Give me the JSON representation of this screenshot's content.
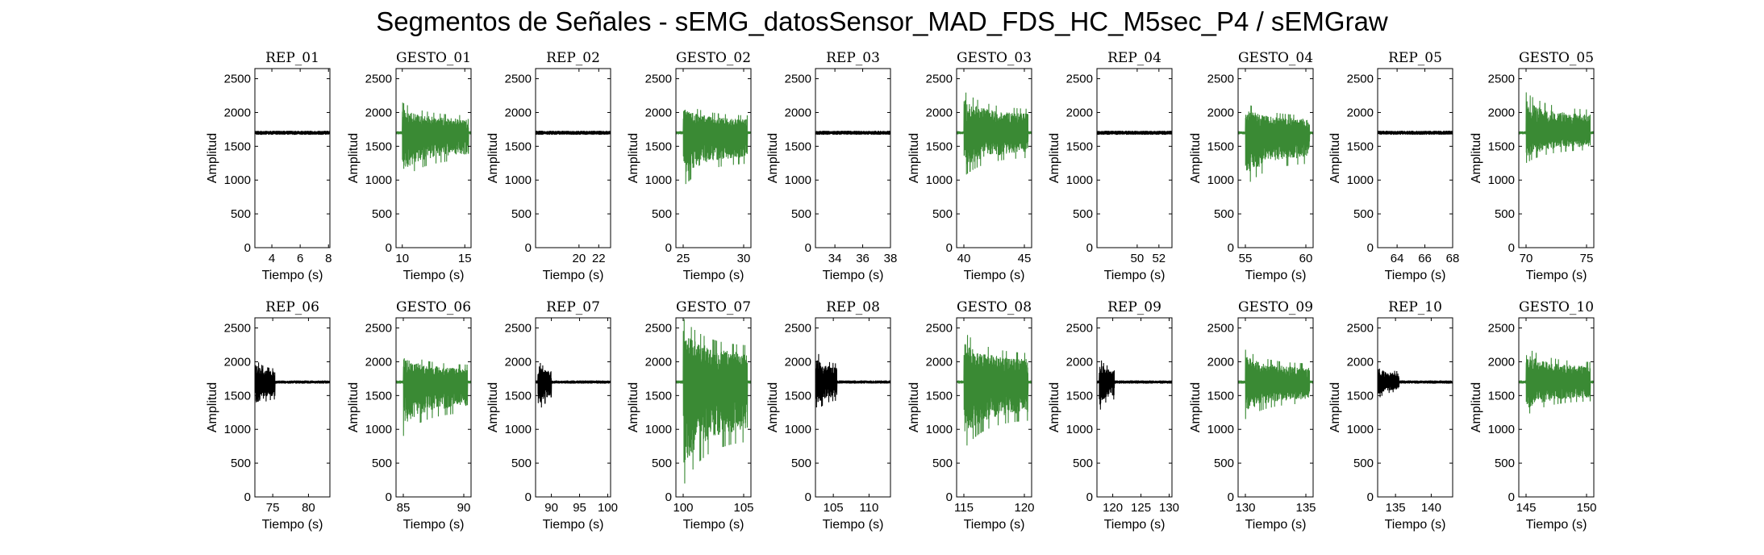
{
  "title": "Segmentos de Señales - sEMG_datosSensor_MAD_FDS_HC_M5sec_P4 / sEMGraw",
  "colors": {
    "rep": "#000000",
    "gesto": "#3a8a34",
    "axis": "#000000"
  },
  "chart_data": [
    {
      "type": "line",
      "title": "REP_01",
      "series": [
        {
          "kind": "rep",
          "active_from": null,
          "active_to": null,
          "spread_hi": 30,
          "spread_lo": 30,
          "baseline": 1700
        }
      ],
      "xlabel": "Tiempo (s)",
      "ylabel": "Amplitud",
      "xlim": [
        2.8,
        8.1
      ],
      "ylim": [
        0,
        2650
      ],
      "xticks": [
        4,
        6,
        8
      ],
      "yticks": [
        0,
        500,
        1000,
        1500,
        2000,
        2500
      ]
    },
    {
      "type": "line",
      "title": "GESTO_01",
      "series": [
        {
          "kind": "gesto",
          "active_from": 10.0,
          "active_to": 15.3,
          "spread_hi": 450,
          "spread_lo": 700,
          "baseline": 1700
        }
      ],
      "xlabel": "Tiempo (s)",
      "ylabel": "Amplitud",
      "xlim": [
        9.5,
        15.5
      ],
      "ylim": [
        0,
        2650
      ],
      "xticks": [
        10,
        15
      ],
      "yticks": [
        0,
        500,
        1000,
        1500,
        2000,
        2500
      ]
    },
    {
      "type": "line",
      "title": "REP_02",
      "series": [
        {
          "kind": "rep",
          "active_from": null,
          "active_to": null,
          "spread_hi": 30,
          "spread_lo": 30,
          "baseline": 1700
        }
      ],
      "xlabel": "Tiempo (s)",
      "ylabel": "Amplitud",
      "xlim": [
        15.6,
        23.2
      ],
      "ylim": [
        0,
        2650
      ],
      "xticks": [
        20,
        22
      ],
      "yticks": [
        0,
        500,
        1000,
        1500,
        2000,
        2500
      ]
    },
    {
      "type": "line",
      "title": "GESTO_02",
      "series": [
        {
          "kind": "gesto",
          "active_from": 25.0,
          "active_to": 30.3,
          "spread_hi": 450,
          "spread_lo": 800,
          "baseline": 1700
        }
      ],
      "xlabel": "Tiempo (s)",
      "ylabel": "Amplitud",
      "xlim": [
        24.4,
        30.6
      ],
      "ylim": [
        0,
        2650
      ],
      "xticks": [
        25,
        30
      ],
      "yticks": [
        0,
        500,
        1000,
        1500,
        2000,
        2500
      ]
    },
    {
      "type": "line",
      "title": "REP_03",
      "series": [
        {
          "kind": "rep",
          "active_from": null,
          "active_to": null,
          "spread_hi": 30,
          "spread_lo": 30,
          "baseline": 1700
        }
      ],
      "xlabel": "Tiempo (s)",
      "ylabel": "Amplitud",
      "xlim": [
        32.6,
        38.0
      ],
      "ylim": [
        0,
        2650
      ],
      "xticks": [
        34,
        36,
        38
      ],
      "yticks": [
        0,
        500,
        1000,
        1500,
        2000,
        2500
      ]
    },
    {
      "type": "line",
      "title": "GESTO_03",
      "series": [
        {
          "kind": "gesto",
          "active_from": 40.0,
          "active_to": 45.3,
          "spread_hi": 620,
          "spread_lo": 650,
          "baseline": 1700
        }
      ],
      "xlabel": "Tiempo (s)",
      "ylabel": "Amplitud",
      "xlim": [
        39.4,
        45.6
      ],
      "ylim": [
        0,
        2650
      ],
      "xticks": [
        40,
        45
      ],
      "yticks": [
        0,
        500,
        1000,
        1500,
        2000,
        2500
      ]
    },
    {
      "type": "line",
      "title": "REP_04",
      "series": [
        {
          "kind": "rep",
          "active_from": null,
          "active_to": null,
          "spread_hi": 30,
          "spread_lo": 30,
          "baseline": 1700
        }
      ],
      "xlabel": "Tiempo (s)",
      "ylabel": "Amplitud",
      "xlim": [
        46.3,
        53.2
      ],
      "ylim": [
        0,
        2650
      ],
      "xticks": [
        50,
        52
      ],
      "yticks": [
        0,
        500,
        1000,
        1500,
        2000,
        2500
      ]
    },
    {
      "type": "line",
      "title": "GESTO_04",
      "series": [
        {
          "kind": "gesto",
          "active_from": 55.0,
          "active_to": 60.3,
          "spread_hi": 450,
          "spread_lo": 800,
          "baseline": 1700
        }
      ],
      "xlabel": "Tiempo (s)",
      "ylabel": "Amplitud",
      "xlim": [
        54.4,
        60.6
      ],
      "ylim": [
        0,
        2650
      ],
      "xticks": [
        55,
        60
      ],
      "yticks": [
        0,
        500,
        1000,
        1500,
        2000,
        2500
      ]
    },
    {
      "type": "line",
      "title": "REP_05",
      "series": [
        {
          "kind": "rep",
          "active_from": null,
          "active_to": null,
          "spread_hi": 30,
          "spread_lo": 30,
          "baseline": 1700
        }
      ],
      "xlabel": "Tiempo (s)",
      "ylabel": "Amplitud",
      "xlim": [
        62.6,
        68.0
      ],
      "ylim": [
        0,
        2650
      ],
      "xticks": [
        64,
        66,
        68
      ],
      "yticks": [
        0,
        500,
        1000,
        1500,
        2000,
        2500
      ]
    },
    {
      "type": "line",
      "title": "GESTO_05",
      "series": [
        {
          "kind": "gesto",
          "active_from": 70.0,
          "active_to": 75.3,
          "spread_hi": 600,
          "spread_lo": 450,
          "baseline": 1700
        }
      ],
      "xlabel": "Tiempo (s)",
      "ylabel": "Amplitud",
      "xlim": [
        69.4,
        75.6
      ],
      "ylim": [
        0,
        2650
      ],
      "xticks": [
        70,
        75
      ],
      "yticks": [
        0,
        500,
        1000,
        1500,
        2000,
        2500
      ]
    },
    {
      "type": "line",
      "title": "REP_06",
      "series": [
        {
          "kind": "rep",
          "active_from": 72.6,
          "active_to": 75.3,
          "spread_hi": 350,
          "spread_lo": 450,
          "baseline": 1700
        }
      ],
      "xlabel": "Tiempo (s)",
      "ylabel": "Amplitud",
      "xlim": [
        72.5,
        83.0
      ],
      "ylim": [
        0,
        2650
      ],
      "xticks": [
        75,
        80
      ],
      "yticks": [
        0,
        500,
        1000,
        1500,
        2000,
        2500
      ]
    },
    {
      "type": "line",
      "title": "GESTO_06",
      "series": [
        {
          "kind": "gesto",
          "active_from": 85.0,
          "active_to": 90.3,
          "spread_hi": 450,
          "spread_lo": 800,
          "baseline": 1700
        }
      ],
      "xlabel": "Tiempo (s)",
      "ylabel": "Amplitud",
      "xlim": [
        84.4,
        90.6
      ],
      "ylim": [
        0,
        2650
      ],
      "xticks": [
        85,
        90
      ],
      "yticks": [
        0,
        500,
        1000,
        1500,
        2000,
        2500
      ]
    },
    {
      "type": "line",
      "title": "REP_07",
      "series": [
        {
          "kind": "rep",
          "active_from": 87.6,
          "active_to": 90.0,
          "spread_hi": 350,
          "spread_lo": 500,
          "baseline": 1700
        }
      ],
      "xlabel": "Tiempo (s)",
      "ylabel": "Amplitud",
      "xlim": [
        87.2,
        100.5
      ],
      "ylim": [
        0,
        2650
      ],
      "xticks": [
        90,
        95,
        100
      ],
      "yticks": [
        0,
        500,
        1000,
        1500,
        2000,
        2500
      ]
    },
    {
      "type": "line",
      "title": "GESTO_07",
      "series": [
        {
          "kind": "gesto",
          "active_from": 100.0,
          "active_to": 105.3,
          "spread_hi": 950,
          "spread_lo": 1550,
          "baseline": 1700
        }
      ],
      "xlabel": "Tiempo (s)",
      "ylabel": "Amplitud",
      "xlim": [
        99.4,
        105.6
      ],
      "ylim": [
        0,
        2650
      ],
      "xticks": [
        100,
        105
      ],
      "yticks": [
        0,
        500,
        1000,
        1500,
        2000,
        2500
      ]
    },
    {
      "type": "line",
      "title": "REP_08",
      "series": [
        {
          "kind": "rep",
          "active_from": 102.6,
          "active_to": 105.5,
          "spread_hi": 480,
          "spread_lo": 480,
          "baseline": 1700
        }
      ],
      "xlabel": "Tiempo (s)",
      "ylabel": "Amplitud",
      "xlim": [
        102.5,
        113.0
      ],
      "ylim": [
        0,
        2650
      ],
      "xticks": [
        105,
        110
      ],
      "yticks": [
        0,
        500,
        1000,
        1500,
        2000,
        2500
      ]
    },
    {
      "type": "line",
      "title": "GESTO_08",
      "series": [
        {
          "kind": "gesto",
          "active_from": 115.0,
          "active_to": 120.3,
          "spread_hi": 750,
          "spread_lo": 1000,
          "baseline": 1700
        }
      ],
      "xlabel": "Tiempo (s)",
      "ylabel": "Amplitud",
      "xlim": [
        114.4,
        120.6
      ],
      "ylim": [
        0,
        2650
      ],
      "xticks": [
        115,
        120
      ],
      "yticks": [
        0,
        500,
        1000,
        1500,
        2000,
        2500
      ]
    },
    {
      "type": "line",
      "title": "REP_09",
      "series": [
        {
          "kind": "rep",
          "active_from": 117.6,
          "active_to": 120.3,
          "spread_hi": 380,
          "spread_lo": 450,
          "baseline": 1700
        }
      ],
      "xlabel": "Tiempo (s)",
      "ylabel": "Amplitud",
      "xlim": [
        117.2,
        130.5
      ],
      "ylim": [
        0,
        2650
      ],
      "xticks": [
        120,
        125,
        130
      ],
      "yticks": [
        0,
        500,
        1000,
        1500,
        2000,
        2500
      ]
    },
    {
      "type": "line",
      "title": "GESTO_09",
      "series": [
        {
          "kind": "gesto",
          "active_from": 130.0,
          "active_to": 135.3,
          "spread_hi": 480,
          "spread_lo": 550,
          "baseline": 1700
        }
      ],
      "xlabel": "Tiempo (s)",
      "ylabel": "Amplitud",
      "xlim": [
        129.4,
        135.6
      ],
      "ylim": [
        0,
        2650
      ],
      "xticks": [
        130,
        135
      ],
      "yticks": [
        0,
        500,
        1000,
        1500,
        2000,
        2500
      ]
    },
    {
      "type": "line",
      "title": "REP_10",
      "series": [
        {
          "kind": "rep",
          "active_from": 132.6,
          "active_to": 135.5,
          "spread_hi": 280,
          "spread_lo": 250,
          "baseline": 1700
        }
      ],
      "xlabel": "Tiempo (s)",
      "ylabel": "Amplitud",
      "xlim": [
        132.5,
        143.0
      ],
      "ylim": [
        0,
        2650
      ],
      "xticks": [
        135,
        140
      ],
      "yticks": [
        0,
        500,
        1000,
        1500,
        2000,
        2500
      ]
    },
    {
      "type": "line",
      "title": "GESTO_10",
      "series": [
        {
          "kind": "gesto",
          "active_from": 145.0,
          "active_to": 150.3,
          "spread_hi": 520,
          "spread_lo": 500,
          "baseline": 1700
        }
      ],
      "xlabel": "Tiempo (s)",
      "ylabel": "Amplitud",
      "xlim": [
        144.4,
        150.6
      ],
      "ylim": [
        0,
        2650
      ],
      "xticks": [
        145,
        150
      ],
      "yticks": [
        0,
        500,
        1000,
        1500,
        2000,
        2500
      ]
    }
  ]
}
